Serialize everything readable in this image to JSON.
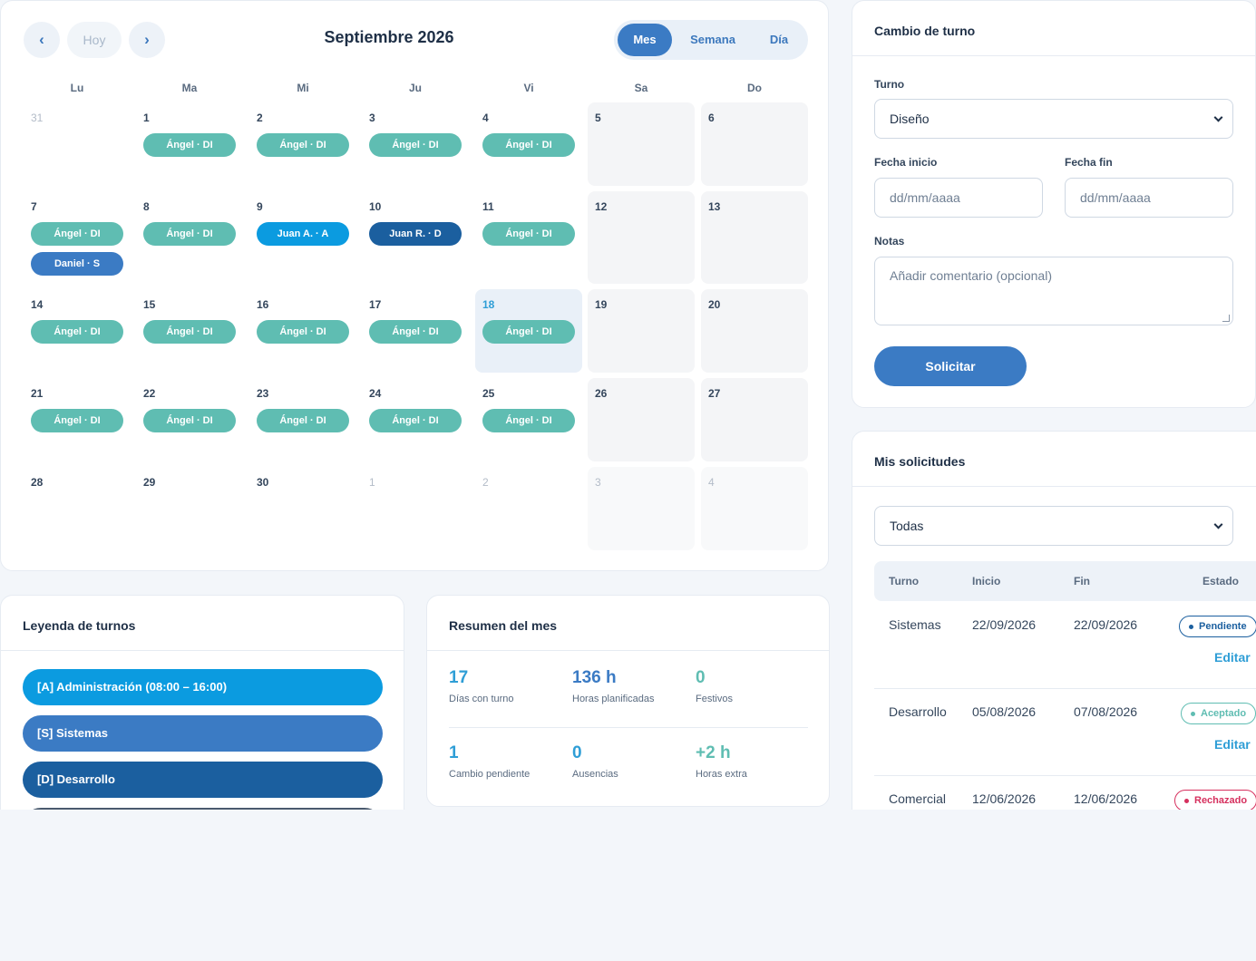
{
  "colors": {
    "primary": "#3b7bc4",
    "design": "#5fbdb2",
    "systems": "#3b7bc4",
    "administration": "#0b9be0",
    "development": "#1b5f9f",
    "today_text": "#2f9ed6",
    "pending": "#1b5f9f",
    "accepted": "#5fbdb2",
    "rejected": "#d6305e"
  },
  "calendar": {
    "prev_icon": "‹",
    "today_label": "Hoy",
    "next_icon": "›",
    "title": "Septiembre 2026",
    "views": {
      "month": "Mes",
      "week": "Semana",
      "day": "Día"
    },
    "weekdays": [
      "Lu",
      "Ma",
      "Mi",
      "Ju",
      "Vi",
      "Sa",
      "Do"
    ],
    "weeks": [
      [
        {
          "num": "31",
          "outside": true,
          "events": []
        },
        {
          "num": "1",
          "events": [
            {
              "label": "Ángel · DI",
              "kind": "dis"
            }
          ]
        },
        {
          "num": "2",
          "events": [
            {
              "label": "Ángel · DI",
              "kind": "dis"
            }
          ]
        },
        {
          "num": "3",
          "events": [
            {
              "label": "Ángel · DI",
              "kind": "dis"
            }
          ]
        },
        {
          "num": "4",
          "events": [
            {
              "label": "Ángel · DI",
              "kind": "dis"
            }
          ]
        },
        {
          "num": "5",
          "events": []
        },
        {
          "num": "6",
          "events": []
        }
      ],
      [
        {
          "num": "7",
          "events": [
            {
              "label": "Ángel · DI",
              "kind": "dis"
            },
            {
              "label": "Daniel · S",
              "kind": "sys"
            }
          ]
        },
        {
          "num": "8",
          "events": [
            {
              "label": "Ángel · DI",
              "kind": "dis"
            }
          ]
        },
        {
          "num": "9",
          "events": [
            {
              "label": "Juan A. · A",
              "kind": "adm"
            }
          ]
        },
        {
          "num": "10",
          "events": [
            {
              "label": "Juan R. · D",
              "kind": "dev"
            }
          ]
        },
        {
          "num": "11",
          "events": [
            {
              "label": "Ángel · DI",
              "kind": "dis"
            }
          ]
        },
        {
          "num": "12",
          "events": []
        },
        {
          "num": "13",
          "events": []
        }
      ],
      [
        {
          "num": "14",
          "events": [
            {
              "label": "Ángel · DI",
              "kind": "dis"
            }
          ]
        },
        {
          "num": "15",
          "events": [
            {
              "label": "Ángel · DI",
              "kind": "dis"
            }
          ]
        },
        {
          "num": "16",
          "events": [
            {
              "label": "Ángel · DI",
              "kind": "dis"
            }
          ]
        },
        {
          "num": "17",
          "events": [
            {
              "label": "Ángel · DI",
              "kind": "dis"
            }
          ]
        },
        {
          "num": "18",
          "today": true,
          "events": [
            {
              "label": "Ángel · DI",
              "kind": "dis"
            }
          ]
        },
        {
          "num": "19",
          "events": []
        },
        {
          "num": "20",
          "events": []
        }
      ],
      [
        {
          "num": "21",
          "events": [
            {
              "label": "Ángel · DI",
              "kind": "dis"
            }
          ]
        },
        {
          "num": "22",
          "events": [
            {
              "label": "Ángel · DI",
              "kind": "dis"
            }
          ]
        },
        {
          "num": "23",
          "events": [
            {
              "label": "Ángel · DI",
              "kind": "dis"
            }
          ]
        },
        {
          "num": "24",
          "events": [
            {
              "label": "Ángel · DI",
              "kind": "dis"
            }
          ]
        },
        {
          "num": "25",
          "events": [
            {
              "label": "Ángel · DI",
              "kind": "dis"
            }
          ]
        },
        {
          "num": "26",
          "events": []
        },
        {
          "num": "27",
          "events": []
        }
      ],
      [
        {
          "num": "28",
          "events": []
        },
        {
          "num": "29",
          "events": []
        },
        {
          "num": "30",
          "events": []
        },
        {
          "num": "1",
          "outside": true,
          "events": []
        },
        {
          "num": "2",
          "outside": true,
          "events": []
        },
        {
          "num": "3",
          "outside": true,
          "events": []
        },
        {
          "num": "4",
          "outside": true,
          "events": []
        }
      ]
    ]
  },
  "legend": {
    "title": "Leyenda de turnos",
    "items": [
      {
        "label": "[A] Administración (08:00 – 16:00)",
        "color": "#0b9be0"
      },
      {
        "label": "[S] Sistemas",
        "color": "#3b7bc4"
      },
      {
        "label": "[D] Desarrollo",
        "color": "#1b5f9f"
      },
      {
        "label": "",
        "color": "#4a5a6e"
      }
    ]
  },
  "summary": {
    "title": "Resumen del mes",
    "stats": [
      {
        "value": "17",
        "label": "Días con turno",
        "color": "#2f9ed6"
      },
      {
        "value": "136 h",
        "label": "Horas planificadas",
        "color": "#3b7bc4"
      },
      {
        "value": "0",
        "label": "Festivos",
        "color": "#5fbdb2"
      },
      {
        "value": "1",
        "label": "Cambio pendiente",
        "color": "#2f9ed6"
      },
      {
        "value": "0",
        "label": "Ausencias",
        "color": "#2f9ed6"
      },
      {
        "value": "+2 h",
        "label": "Horas extra",
        "color": "#5fbdb2"
      }
    ]
  },
  "change_form": {
    "title": "Cambio de turno",
    "shift_label": "Turno",
    "shift_value": "Diseño",
    "start_label": "Fecha inicio",
    "start_placeholder": "dd/mm/aaaa",
    "end_label": "Fecha fin",
    "end_placeholder": "dd/mm/aaaa",
    "notes_label": "Notas",
    "notes_placeholder": "Añadir comentario (opcional)",
    "submit_label": "Solicitar"
  },
  "requests": {
    "title": "Mis solicitudes",
    "filter_value": "Todas",
    "columns": [
      "Turno",
      "Inicio",
      "Fin",
      "Estado"
    ],
    "rows": [
      {
        "shift": "Sistemas",
        "start": "22/09/2026",
        "end": "22/09/2026",
        "status": "Pendiente",
        "status_kind": "pend",
        "action": "Editar"
      },
      {
        "shift": "Desarrollo",
        "start": "05/08/2026",
        "end": "07/08/2026",
        "status": "Aceptado",
        "status_kind": "acc",
        "action": "Editar"
      },
      {
        "shift": "Comercial",
        "start": "12/06/2026",
        "end": "12/06/2026",
        "status": "Rechazado",
        "status_kind": "rej",
        "action": ""
      }
    ]
  }
}
